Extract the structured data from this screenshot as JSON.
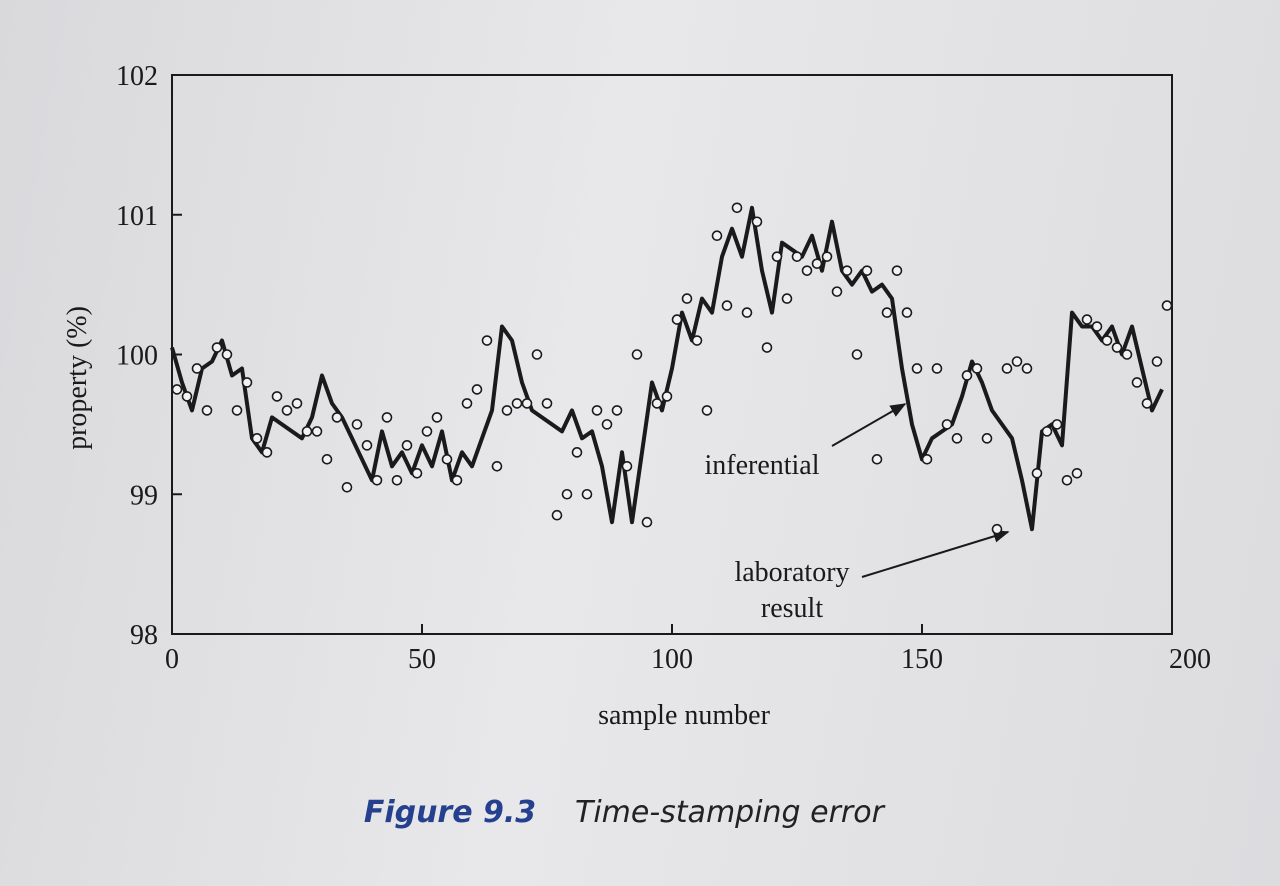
{
  "chart_data": {
    "type": "line",
    "x_label": "sample number",
    "y_label": "property (%)",
    "xlim": [
      0,
      200
    ],
    "xticks": [
      0,
      50,
      100,
      150,
      200
    ],
    "ylim": [
      98,
      102
    ],
    "yticks": [
      98,
      99,
      100,
      101,
      102
    ],
    "grid": false,
    "caption_label": "Figure 9.3",
    "caption_text": "Time-stamping error",
    "annotations": [
      {
        "lines": [
          "inferential"
        ]
      },
      {
        "lines": [
          "laboratory",
          "result"
        ]
      }
    ],
    "series": [
      {
        "type": "line",
        "color": "#1a1a1a",
        "x": [
          0,
          2,
          4,
          6,
          8,
          10,
          12,
          14,
          16,
          18,
          20,
          22,
          24,
          26,
          28,
          30,
          32,
          34,
          36,
          38,
          40,
          42,
          44,
          46,
          48,
          50,
          52,
          54,
          56,
          58,
          60,
          62,
          64,
          66,
          68,
          70,
          72,
          74,
          76,
          78,
          80,
          82,
          84,
          86,
          88,
          90,
          92,
          94,
          96,
          98,
          100,
          102,
          104,
          106,
          108,
          110,
          112,
          114,
          116,
          118,
          120,
          122,
          124,
          126,
          128,
          130,
          132,
          134,
          136,
          138,
          140,
          142,
          144,
          146,
          148,
          150,
          152,
          154,
          156,
          158,
          160,
          162,
          164,
          166,
          168,
          170,
          172,
          174,
          176,
          178,
          180,
          182,
          184,
          186,
          188,
          190,
          192,
          194,
          196,
          198
        ],
        "values": [
          100.05,
          99.8,
          99.6,
          99.9,
          99.95,
          100.1,
          99.85,
          99.9,
          99.4,
          99.3,
          99.55,
          99.5,
          99.45,
          99.4,
          99.55,
          99.85,
          99.65,
          99.55,
          99.4,
          99.25,
          99.1,
          99.45,
          99.2,
          99.3,
          99.15,
          99.35,
          99.2,
          99.45,
          99.1,
          99.3,
          99.2,
          99.4,
          99.6,
          100.2,
          100.1,
          99.8,
          99.6,
          99.55,
          99.5,
          99.45,
          99.6,
          99.4,
          99.45,
          99.2,
          98.8,
          99.3,
          98.8,
          99.3,
          99.8,
          99.6,
          99.9,
          100.3,
          100.1,
          100.4,
          100.3,
          100.7,
          100.9,
          100.7,
          101.05,
          100.6,
          100.3,
          100.8,
          100.75,
          100.7,
          100.85,
          100.6,
          100.95,
          100.6,
          100.5,
          100.6,
          100.45,
          100.5,
          100.4,
          99.9,
          99.5,
          99.25,
          99.4,
          99.45,
          99.5,
          99.7,
          99.95,
          99.8,
          99.6,
          99.5,
          99.4,
          99.1,
          98.75,
          99.45,
          99.5,
          99.35,
          100.3,
          100.2,
          100.2,
          100.1,
          100.2,
          100.0,
          100.2,
          99.9,
          99.6,
          99.75
        ]
      },
      {
        "type": "scatter",
        "color": "#1a1a1a",
        "x": [
          1,
          3,
          5,
          7,
          9,
          11,
          13,
          15,
          17,
          19,
          21,
          23,
          25,
          27,
          29,
          31,
          33,
          35,
          37,
          39,
          41,
          43,
          45,
          47,
          49,
          51,
          53,
          55,
          57,
          59,
          61,
          63,
          65,
          67,
          69,
          71,
          73,
          75,
          77,
          79,
          81,
          83,
          85,
          87,
          89,
          91,
          93,
          95,
          97,
          99,
          101,
          103,
          105,
          107,
          109,
          111,
          113,
          115,
          117,
          119,
          121,
          123,
          125,
          127,
          129,
          131,
          133,
          135,
          137,
          139,
          141,
          143,
          145,
          147,
          149,
          151,
          153,
          155,
          157,
          159,
          161,
          163,
          165,
          167,
          169,
          171,
          173,
          175,
          177,
          179,
          181,
          183,
          185,
          187,
          189,
          191,
          193,
          195,
          197,
          199
        ],
        "values": [
          99.75,
          99.7,
          99.9,
          99.6,
          100.05,
          100.0,
          99.6,
          99.8,
          99.4,
          99.3,
          99.7,
          99.6,
          99.65,
          99.45,
          99.45,
          99.25,
          99.55,
          99.05,
          99.5,
          99.35,
          99.1,
          99.55,
          99.1,
          99.35,
          99.15,
          99.45,
          99.55,
          99.25,
          99.1,
          99.65,
          99.75,
          100.1,
          99.2,
          99.6,
          99.65,
          99.65,
          100.0,
          99.65,
          98.85,
          99.0,
          99.3,
          99.0,
          99.6,
          99.5,
          99.6,
          99.2,
          100.0,
          98.8,
          99.65,
          99.7,
          100.25,
          100.4,
          100.1,
          99.6,
          100.85,
          100.35,
          101.05,
          100.3,
          100.95,
          100.05,
          100.7,
          100.4,
          100.7,
          100.6,
          100.65,
          100.7,
          100.45,
          100.6,
          100.0,
          100.6,
          99.25,
          100.3,
          100.6,
          100.3,
          99.9,
          99.25,
          99.9,
          99.5,
          99.4,
          99.85,
          99.9,
          99.4,
          98.75,
          99.9,
          99.95,
          99.9,
          99.15,
          99.45,
          99.5,
          99.1,
          99.15,
          100.25,
          100.2,
          100.1,
          100.05,
          100.0,
          99.8,
          99.65,
          99.95,
          100.35
        ]
      }
    ]
  }
}
